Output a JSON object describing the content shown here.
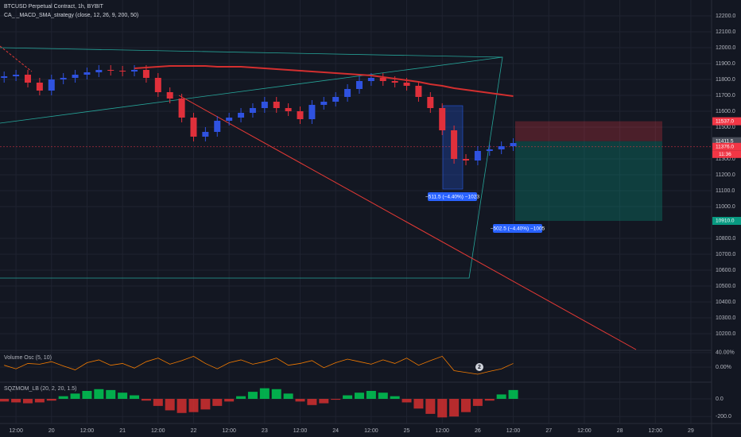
{
  "header": {
    "symbol": "BTCUSD Perpetual Contract, 1h, BYBIT",
    "strategy": "CA_ _MACD_SMA_strategy (close, 12, 26, 9, 200, 50)"
  },
  "chart_data": [
    {
      "type": "candlestick",
      "x": [
        -4,
        0,
        4,
        8,
        12,
        16,
        20,
        24,
        28,
        32,
        36,
        40,
        44,
        48,
        52,
        56,
        60,
        64,
        68,
        72,
        76,
        80,
        84,
        88,
        92,
        96,
        100,
        104,
        108,
        112,
        116,
        120,
        124,
        128,
        132,
        136,
        140,
        144,
        148,
        152,
        156,
        160,
        164,
        168
      ],
      "open": [
        11810,
        11820,
        11830,
        11780,
        11730,
        11800,
        11810,
        11830,
        11845,
        11860,
        11855,
        11850,
        11860,
        11810,
        11720,
        11680,
        11560,
        11440,
        11470,
        11540,
        11560,
        11590,
        11620,
        11660,
        11620,
        11600,
        11550,
        11640,
        11660,
        11690,
        11740,
        11790,
        11810,
        11790,
        11780,
        11760,
        11690,
        11620,
        11480,
        11300,
        11290,
        11350,
        11360,
        11380
      ],
      "high": [
        11850,
        11860,
        11860,
        11810,
        11830,
        11840,
        11860,
        11875,
        11890,
        11890,
        11885,
        11890,
        11890,
        11840,
        11750,
        11710,
        11590,
        11500,
        11570,
        11590,
        11620,
        11650,
        11690,
        11690,
        11650,
        11630,
        11670,
        11690,
        11720,
        11770,
        11820,
        11840,
        11840,
        11820,
        11810,
        11790,
        11720,
        11650,
        11510,
        11330,
        11380,
        11390,
        11410,
        11430
      ],
      "low": [
        11780,
        11790,
        11750,
        11700,
        11700,
        11770,
        11780,
        11800,
        11815,
        11825,
        11820,
        11820,
        11780,
        11690,
        11650,
        11530,
        11410,
        11410,
        11440,
        11510,
        11530,
        11560,
        11590,
        11590,
        11570,
        11520,
        11520,
        11610,
        11630,
        11660,
        11710,
        11760,
        11760,
        11750,
        11730,
        11660,
        11590,
        11450,
        11270,
        11260,
        11260,
        11320,
        11330,
        11350
      ],
      "close": [
        11820,
        11830,
        11780,
        11730,
        11800,
        11810,
        11830,
        11845,
        11860,
        11855,
        11850,
        11860,
        11810,
        11720,
        11680,
        11560,
        11440,
        11470,
        11540,
        11560,
        11590,
        11620,
        11660,
        11620,
        11600,
        11550,
        11640,
        11660,
        11690,
        11740,
        11790,
        11810,
        11790,
        11780,
        11760,
        11690,
        11620,
        11480,
        11300,
        11290,
        11350,
        11360,
        11380,
        11400
      ],
      "up_color": "#2f52e0",
      "down_color": "#e0303b",
      "ma": {
        "color": "#d32f2f",
        "values": [
          null,
          null,
          null,
          null,
          null,
          null,
          null,
          null,
          null,
          null,
          null,
          11870,
          11875,
          11880,
          11885,
          11885,
          11885,
          11885,
          11880,
          11880,
          11880,
          11875,
          11870,
          11865,
          11860,
          11855,
          11850,
          11845,
          11840,
          11835,
          11830,
          11825,
          11815,
          11805,
          11795,
          11785,
          11770,
          11760,
          11745,
          11735,
          11725,
          11715,
          11705,
          11695
        ]
      },
      "xlim": [
        -5.4,
        235
      ],
      "xticks": [
        {
          "value": 0,
          "label": "12:00"
        },
        {
          "value": 12,
          "label": "20"
        },
        {
          "value": 24,
          "label": "12:00"
        },
        {
          "value": 36,
          "label": "21"
        },
        {
          "value": 48,
          "label": "12:00"
        },
        {
          "value": 60,
          "label": "22"
        },
        {
          "value": 72,
          "label": "12:00"
        },
        {
          "value": 84,
          "label": "23"
        },
        {
          "value": 96,
          "label": "12:00"
        },
        {
          "value": 108,
          "label": "24"
        },
        {
          "value": 120,
          "label": "12:00"
        },
        {
          "value": 132,
          "label": "25"
        },
        {
          "value": 144,
          "label": "12:00"
        },
        {
          "value": 156,
          "label": "26"
        },
        {
          "value": 168,
          "label": "12:00"
        },
        {
          "value": 180,
          "label": "27"
        },
        {
          "value": 192,
          "label": "12:00"
        },
        {
          "value": 204,
          "label": "28"
        },
        {
          "value": 216,
          "label": "12:00"
        },
        {
          "value": 228,
          "label": "29"
        }
      ],
      "ylim": [
        10100,
        12250
      ],
      "yticks": [
        {
          "value": 12200,
          "label": "12200.0"
        },
        {
          "value": 12100,
          "label": "12100.0"
        },
        {
          "value": 12000,
          "label": "12000.0"
        },
        {
          "value": 11900,
          "label": "11900.0"
        },
        {
          "value": 11800,
          "label": "11800.0"
        },
        {
          "value": 11700,
          "label": "11700.0"
        },
        {
          "value": 11600,
          "label": "11600.0"
        },
        {
          "value": 11500,
          "label": "11500.0"
        },
        {
          "value": 11300,
          "label": "11300.0"
        },
        {
          "value": 11200,
          "label": "11200.0"
        },
        {
          "value": 11100,
          "label": "11100.0"
        },
        {
          "value": 11000,
          "label": "11000.0"
        },
        {
          "value": 10800,
          "label": "10800.0"
        },
        {
          "value": 10700,
          "label": "10700.0"
        },
        {
          "value": 10600,
          "label": "10600.0"
        },
        {
          "value": 10500,
          "label": "10500.0"
        },
        {
          "value": 10400,
          "label": "10400.0"
        },
        {
          "value": 10300,
          "label": "10300.0"
        },
        {
          "value": 10200,
          "label": "10200.0"
        }
      ],
      "price_tags": [
        {
          "value": 11537,
          "label": "11537.0",
          "color": "#f23645"
        },
        {
          "value": 11411.5,
          "label": "11411.5",
          "color": "#4a4e5a"
        },
        {
          "value": 11376,
          "label": "11376.0",
          "color": "#f23645",
          "note": "11:36"
        },
        {
          "value": 10910,
          "label": "10910.0",
          "color": "#089981"
        }
      ],
      "measures": [
        "−511.5 (−4.40%) −1023",
        "−502.5 (−4.40%) −1005"
      ]
    },
    {
      "type": "line",
      "title": "Volume Osc (5, 10)",
      "color": "#f57c00",
      "x": [
        -4,
        0,
        4,
        8,
        12,
        16,
        20,
        24,
        28,
        32,
        36,
        40,
        44,
        48,
        52,
        56,
        60,
        64,
        68,
        72,
        76,
        80,
        84,
        88,
        92,
        96,
        100,
        104,
        108,
        112,
        116,
        120,
        124,
        128,
        132,
        136,
        140,
        144,
        148,
        152,
        156,
        160,
        164,
        168
      ],
      "values": [
        5,
        -5,
        10,
        8,
        15,
        3,
        -8,
        12,
        20,
        5,
        10,
        -3,
        15,
        25,
        8,
        18,
        30,
        10,
        -5,
        12,
        20,
        8,
        15,
        25,
        5,
        10,
        18,
        -2,
        12,
        22,
        15,
        8,
        20,
        10,
        25,
        5,
        18,
        30,
        -10,
        -15,
        -20,
        -12,
        -5,
        10
      ],
      "ylim": [
        -40,
        42
      ],
      "yticks": [
        {
          "value": 40,
          "label": "40.00%"
        },
        {
          "value": 0,
          "label": "0.00%"
        }
      ],
      "marker_label": "2"
    },
    {
      "type": "bar",
      "title": "SQZMOM_LB (20, 2, 20, 1.5)",
      "up_color": "#00c853",
      "down_color": "#d32f2f",
      "x": [
        -4,
        0,
        4,
        8,
        12,
        16,
        20,
        24,
        28,
        32,
        36,
        40,
        44,
        48,
        52,
        56,
        60,
        64,
        68,
        72,
        76,
        80,
        84,
        88,
        92,
        96,
        100,
        104,
        108,
        112,
        116,
        120,
        124,
        128,
        132,
        136,
        140,
        144,
        148,
        152,
        156,
        160,
        164,
        168
      ],
      "values": [
        -30,
        -40,
        -50,
        -40,
        -20,
        30,
        60,
        90,
        110,
        100,
        70,
        40,
        -20,
        -80,
        -130,
        -160,
        -150,
        -120,
        -80,
        -30,
        30,
        80,
        120,
        110,
        60,
        -30,
        -70,
        -50,
        -10,
        40,
        70,
        90,
        70,
        30,
        -40,
        -110,
        -170,
        -210,
        -200,
        -150,
        -80,
        -20,
        50,
        100
      ],
      "ylim": [
        -270,
        180
      ],
      "yticks": [
        {
          "value": 0,
          "label": "0.0"
        },
        {
          "value": -200,
          "label": "-200.0"
        }
      ]
    }
  ]
}
